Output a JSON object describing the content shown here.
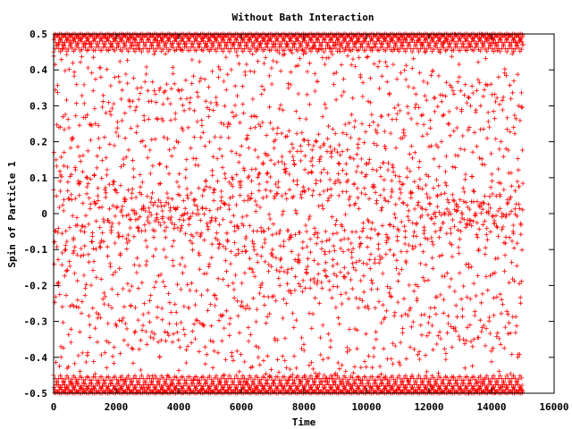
{
  "chart_data": {
    "type": "scatter",
    "title": "Without Bath Interaction",
    "xlabel": "Time",
    "ylabel": "Spin of Particle 1",
    "xlim": [
      0,
      16000
    ],
    "ylim": [
      -0.5,
      0.5
    ],
    "xticks": [
      "0",
      "2000",
      "4000",
      "6000",
      "8000",
      "10000",
      "12000",
      "14000",
      "16000"
    ],
    "yticks": [
      "0.5",
      "0.4",
      "0.3",
      "0.2",
      "0.1",
      "0",
      "-0.1",
      "-0.2",
      "-0.3",
      "-0.4",
      "-0.5"
    ],
    "grid": false,
    "marker": "+",
    "marker_color": "#ff0000",
    "series": [
      {
        "x_range": [
          0,
          15000
        ],
        "amplitude": 0.5,
        "description_values": {
          "x": [
            0,
            2000,
            4000,
            6000,
            8000,
            10000,
            12000,
            14000,
            15000
          ],
          "y_min": [
            -0.5,
            -0.5,
            -0.5,
            -0.5,
            -0.5,
            -0.5,
            -0.5,
            -0.5,
            -0.5
          ],
          "y_max": [
            0.5,
            0.5,
            0.5,
            0.5,
            0.5,
            0.5,
            0.5,
            0.5,
            0.47
          ]
        }
      }
    ]
  }
}
